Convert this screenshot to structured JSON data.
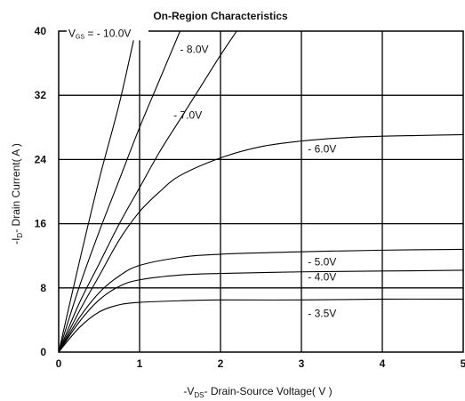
{
  "chart_data": {
    "type": "line",
    "title": "On-Region Characteristics",
    "xlabel": "-Vₑₛ - Drain-Source Voltage( V )",
    "xlabel_main": "- Drain-Source Voltage( V )",
    "xlabel_prefix": "-V",
    "xlabel_sub": "DS",
    "ylabel_prefix": "-I",
    "ylabel_sub": "D",
    "ylabel_main": "- Drain Current( A )",
    "xlim": [
      0,
      5
    ],
    "ylim": [
      0,
      40
    ],
    "xticks": [
      0,
      1,
      2,
      3,
      4,
      5
    ],
    "yticks": [
      0,
      8,
      16,
      24,
      32,
      40
    ],
    "grid": true,
    "series": [
      {
        "name": "V₆ₛ = - 10.0V",
        "label_prefix": "V",
        "label_sub": "GS",
        "label_main": " = - 10.0V",
        "x": [
          0,
          0.25,
          0.5,
          0.75,
          0.95
        ],
        "y": [
          0,
          11,
          21.5,
          31,
          40
        ]
      },
      {
        "name": "- 8.0V",
        "label_main": "- 8.0V",
        "x": [
          0,
          0.25,
          0.5,
          0.75,
          1.0,
          1.25,
          1.5
        ],
        "y": [
          0,
          8,
          15,
          21.5,
          28,
          34,
          40
        ]
      },
      {
        "name": "- 7.0V",
        "label_main": "- 7.0V",
        "x": [
          0,
          0.25,
          0.5,
          0.75,
          1.0,
          1.25,
          1.5,
          1.75,
          2.0,
          2.2
        ],
        "y": [
          0,
          6,
          11,
          16,
          20.5,
          25,
          29,
          33,
          37,
          40
        ]
      },
      {
        "name": "- 6.0V",
        "label_main": "- 6.0V",
        "x": [
          0,
          0.25,
          0.5,
          0.75,
          1.0,
          1.25,
          1.5,
          2.0,
          2.5,
          3.0,
          3.5,
          4.0,
          4.5,
          5.0
        ],
        "y": [
          0,
          5,
          9.5,
          14,
          17.5,
          20,
          22,
          24.2,
          25.6,
          26.3,
          26.7,
          26.9,
          27.0,
          27.1
        ]
      },
      {
        "name": "- 5.0V",
        "label_main": "- 5.0V",
        "x": [
          0,
          0.25,
          0.5,
          0.75,
          1.0,
          1.5,
          2.0,
          3.0,
          4.0,
          5.0
        ],
        "y": [
          0,
          4.2,
          7.4,
          9.5,
          10.8,
          11.8,
          12.2,
          12.5,
          12.7,
          12.8
        ]
      },
      {
        "name": "- 4.0V",
        "label_main": "- 4.0V",
        "x": [
          0,
          0.25,
          0.5,
          0.75,
          1.0,
          1.5,
          2.0,
          3.0,
          4.0,
          5.0
        ],
        "y": [
          0,
          3.7,
          6.5,
          8.2,
          9.0,
          9.6,
          9.8,
          10.0,
          10.1,
          10.2
        ]
      },
      {
        "name": "- 3.5V",
        "label_main": "- 3.5V",
        "x": [
          0,
          0.25,
          0.5,
          0.75,
          1.0,
          1.5,
          2.0,
          3.0,
          4.0,
          5.0
        ],
        "y": [
          0,
          3.0,
          5.0,
          5.9,
          6.2,
          6.4,
          6.5,
          6.5,
          6.6,
          6.6
        ]
      }
    ],
    "annotations": [
      {
        "series": 0,
        "at": [
          0.12,
          39.3
        ],
        "anchor": "start"
      },
      {
        "series": 1,
        "at": [
          1.5,
          37.3
        ],
        "anchor": "start"
      },
      {
        "series": 2,
        "at": [
          1.42,
          29.1
        ],
        "anchor": "start"
      },
      {
        "series": 3,
        "at": [
          3.08,
          24.9
        ],
        "anchor": "start"
      },
      {
        "series": 4,
        "at": [
          3.08,
          10.8
        ],
        "anchor": "start"
      },
      {
        "series": 5,
        "at": [
          3.08,
          8.9
        ],
        "anchor": "start"
      },
      {
        "series": 6,
        "at": [
          3.08,
          4.4
        ],
        "anchor": "start"
      }
    ]
  }
}
